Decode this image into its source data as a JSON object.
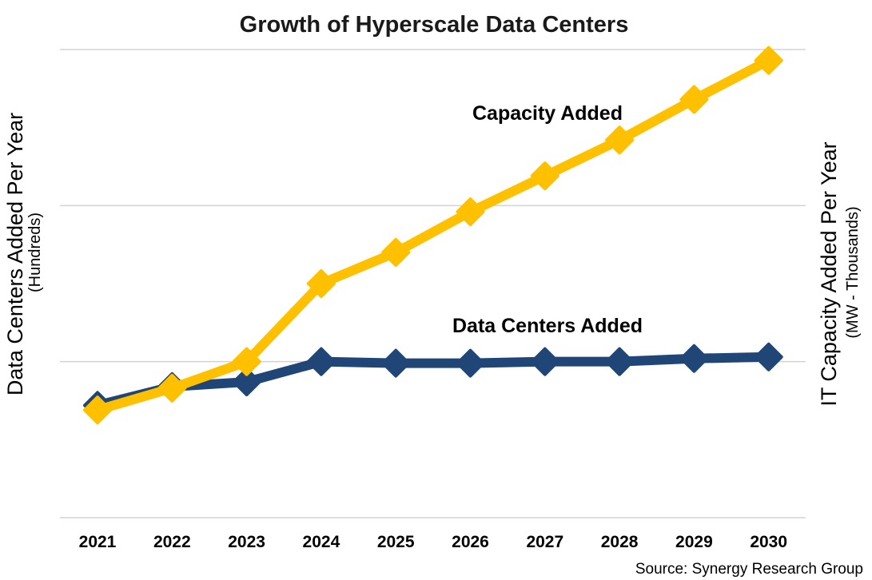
{
  "chart_data": {
    "type": "line",
    "title": "Growth of Hyperscale Data Centers",
    "categories": [
      "2021",
      "2022",
      "2023",
      "2024",
      "2025",
      "2026",
      "2027",
      "2028",
      "2029",
      "2030"
    ],
    "ylabel": "Data Centers Added Per Year",
    "ylabel_sub": "(Hundreds)",
    "y2label": "IT Capacity Added Per Year",
    "y2label_sub": "(MW - Thousands)",
    "ylim": [
      0,
      3
    ],
    "grid": true,
    "series": [
      {
        "name": "Data Centers Added",
        "color": "#1f4677",
        "marker": "diamond",
        "values": [
          0.72,
          0.84,
          0.87,
          1.0,
          0.99,
          0.99,
          1.0,
          1.0,
          1.02,
          1.03
        ]
      },
      {
        "name": "Capacity Added",
        "color": "#ffc000",
        "marker": "diamond",
        "values": [
          0.69,
          0.83,
          1.0,
          1.5,
          1.7,
          1.96,
          2.19,
          2.42,
          2.68,
          2.93
        ]
      }
    ],
    "source": "Source: Synergy Research Group"
  }
}
